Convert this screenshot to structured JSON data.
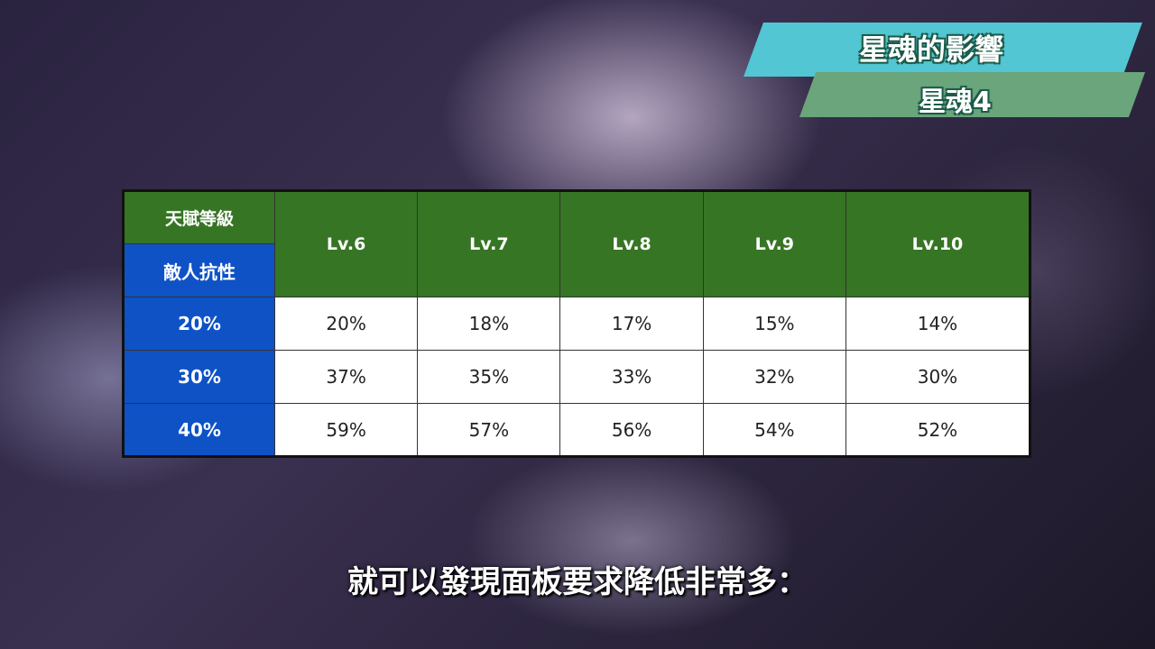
{
  "banner": {
    "title": "星魂的影響",
    "subtitle": "星魂4"
  },
  "table": {
    "corner_top": "天賦等級",
    "corner_bottom": "敵人抗性",
    "levels": [
      "Lv.6",
      "Lv.7",
      "Lv.8",
      "Lv.9",
      "Lv.10"
    ],
    "rows": [
      {
        "resistance": "20%",
        "values": [
          "20%",
          "18%",
          "17%",
          "15%",
          "14%"
        ]
      },
      {
        "resistance": "30%",
        "values": [
          "37%",
          "35%",
          "33%",
          "32%",
          "30%"
        ]
      },
      {
        "resistance": "40%",
        "values": [
          "59%",
          "57%",
          "56%",
          "54%",
          "52%"
        ]
      }
    ]
  },
  "subtitle": "就可以發現面板要求降低非常多：",
  "colors": {
    "header_green": "#367524",
    "row_blue": "#0e52c6",
    "banner_cyan": "#52c6d2",
    "banner_green": "#6aa57c"
  }
}
